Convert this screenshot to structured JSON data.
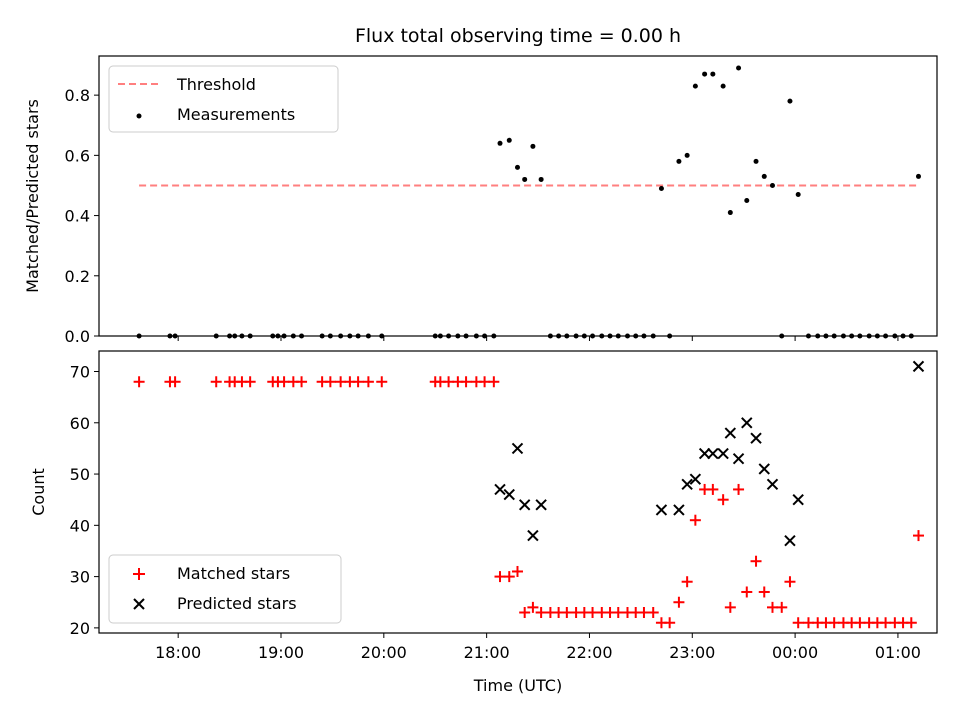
{
  "title": "Flux total observing time = 0.00 h",
  "chart_data": [
    {
      "type": "scatter",
      "ylabel": "Matched/Predicted stars",
      "xlim": [
        17.23,
        1.38
      ],
      "ylim": [
        0.0,
        0.93
      ],
      "xticks": [
        18,
        19,
        20,
        21,
        22,
        23,
        0,
        1
      ],
      "yticks": [
        0.0,
        0.2,
        0.4,
        0.6,
        0.8
      ],
      "ytick_labels": [
        "0.0",
        "0.2",
        "0.4",
        "0.6",
        "0.8"
      ],
      "legend": [
        "Threshold",
        "Measurements"
      ],
      "legend_position": "upper-left",
      "threshold": {
        "name": "Threshold",
        "y": 0.5,
        "x_range": [
          17.62,
          1.2
        ],
        "color": "#ff7f7f",
        "style": "dashed"
      },
      "series": [
        {
          "name": "Measurements",
          "color": "#000000",
          "points": [
            [
              17.62,
              0.0
            ],
            [
              17.92,
              0.0
            ],
            [
              17.97,
              0.0
            ],
            [
              18.37,
              0.0
            ],
            [
              18.5,
              0.0
            ],
            [
              18.55,
              0.0
            ],
            [
              18.62,
              0.0
            ],
            [
              18.7,
              0.0
            ],
            [
              18.92,
              0.0
            ],
            [
              18.97,
              0.0
            ],
            [
              19.03,
              0.0
            ],
            [
              19.12,
              0.0
            ],
            [
              19.2,
              0.0
            ],
            [
              19.4,
              0.0
            ],
            [
              19.48,
              0.0
            ],
            [
              19.58,
              0.0
            ],
            [
              19.67,
              0.0
            ],
            [
              19.75,
              0.0
            ],
            [
              19.85,
              0.0
            ],
            [
              19.98,
              0.0
            ],
            [
              20.5,
              0.0
            ],
            [
              20.55,
              0.0
            ],
            [
              20.63,
              0.0
            ],
            [
              20.72,
              0.0
            ],
            [
              20.8,
              0.0
            ],
            [
              20.9,
              0.0
            ],
            [
              20.98,
              0.0
            ],
            [
              21.07,
              0.0
            ],
            [
              21.13,
              0.64
            ],
            [
              21.22,
              0.65
            ],
            [
              21.3,
              0.56
            ],
            [
              21.37,
              0.52
            ],
            [
              21.45,
              0.63
            ],
            [
              21.53,
              0.52
            ],
            [
              21.62,
              0.0
            ],
            [
              21.7,
              0.0
            ],
            [
              21.78,
              0.0
            ],
            [
              21.87,
              0.0
            ],
            [
              21.95,
              0.0
            ],
            [
              22.03,
              0.0
            ],
            [
              22.12,
              0.0
            ],
            [
              22.2,
              0.0
            ],
            [
              22.28,
              0.0
            ],
            [
              22.37,
              0.0
            ],
            [
              22.45,
              0.0
            ],
            [
              22.53,
              0.0
            ],
            [
              22.62,
              0.0
            ],
            [
              22.7,
              0.49
            ],
            [
              22.78,
              0.0
            ],
            [
              22.87,
              0.58
            ],
            [
              22.95,
              0.6
            ],
            [
              23.03,
              0.83
            ],
            [
              23.12,
              0.87
            ],
            [
              23.2,
              0.87
            ],
            [
              23.3,
              0.83
            ],
            [
              23.37,
              0.41
            ],
            [
              23.45,
              0.89
            ],
            [
              23.53,
              0.45
            ],
            [
              23.62,
              0.58
            ],
            [
              23.7,
              0.53
            ],
            [
              23.78,
              0.5
            ],
            [
              23.87,
              0.0
            ],
            [
              23.95,
              0.78
            ],
            [
              24.03,
              0.47
            ],
            [
              24.13,
              0.0
            ],
            [
              24.22,
              0.0
            ],
            [
              24.3,
              0.0
            ],
            [
              24.38,
              0.0
            ],
            [
              24.47,
              0.0
            ],
            [
              24.55,
              0.0
            ],
            [
              24.63,
              0.0
            ],
            [
              24.72,
              0.0
            ],
            [
              24.8,
              0.0
            ],
            [
              24.88,
              0.0
            ],
            [
              24.97,
              0.0
            ],
            [
              25.05,
              0.0
            ],
            [
              25.13,
              0.0
            ],
            [
              25.2,
              0.53
            ]
          ]
        }
      ]
    },
    {
      "type": "scatter",
      "xlabel": "Time (UTC)",
      "ylabel": "Count",
      "xlim": [
        17.23,
        1.38
      ],
      "ylim": [
        19,
        74
      ],
      "xticks": [
        18,
        19,
        20,
        21,
        22,
        23,
        0,
        1
      ],
      "xtick_labels": [
        "18:00",
        "19:00",
        "20:00",
        "21:00",
        "22:00",
        "23:00",
        "00:00",
        "01:00"
      ],
      "yticks": [
        20,
        30,
        40,
        50,
        60,
        70
      ],
      "ytick_labels": [
        "20",
        "30",
        "40",
        "50",
        "60",
        "70"
      ],
      "legend": [
        "Matched stars",
        "Predicted stars"
      ],
      "legend_position": "lower-left",
      "series": [
        {
          "name": "Matched stars",
          "marker": "+",
          "color": "#ff0000",
          "points": [
            [
              17.62,
              68
            ],
            [
              17.92,
              68
            ],
            [
              17.97,
              68
            ],
            [
              18.37,
              68
            ],
            [
              18.5,
              68
            ],
            [
              18.55,
              68
            ],
            [
              18.62,
              68
            ],
            [
              18.7,
              68
            ],
            [
              18.92,
              68
            ],
            [
              18.97,
              68
            ],
            [
              19.03,
              68
            ],
            [
              19.12,
              68
            ],
            [
              19.2,
              68
            ],
            [
              19.4,
              68
            ],
            [
              19.48,
              68
            ],
            [
              19.58,
              68
            ],
            [
              19.67,
              68
            ],
            [
              19.75,
              68
            ],
            [
              19.85,
              68
            ],
            [
              19.98,
              68
            ],
            [
              20.5,
              68
            ],
            [
              20.55,
              68
            ],
            [
              20.63,
              68
            ],
            [
              20.72,
              68
            ],
            [
              20.8,
              68
            ],
            [
              20.9,
              68
            ],
            [
              20.98,
              68
            ],
            [
              21.07,
              68
            ],
            [
              21.13,
              30
            ],
            [
              21.22,
              30
            ],
            [
              21.3,
              31
            ],
            [
              21.37,
              23
            ],
            [
              21.45,
              24
            ],
            [
              21.53,
              23
            ],
            [
              21.62,
              23
            ],
            [
              21.7,
              23
            ],
            [
              21.78,
              23
            ],
            [
              21.87,
              23
            ],
            [
              21.95,
              23
            ],
            [
              22.03,
              23
            ],
            [
              22.12,
              23
            ],
            [
              22.2,
              23
            ],
            [
              22.28,
              23
            ],
            [
              22.37,
              23
            ],
            [
              22.45,
              23
            ],
            [
              22.53,
              23
            ],
            [
              22.62,
              23
            ],
            [
              22.7,
              21
            ],
            [
              22.78,
              21
            ],
            [
              22.87,
              25
            ],
            [
              22.95,
              29
            ],
            [
              23.03,
              41
            ],
            [
              23.12,
              47
            ],
            [
              23.2,
              47
            ],
            [
              23.3,
              45
            ],
            [
              23.37,
              24
            ],
            [
              23.45,
              47
            ],
            [
              23.53,
              27
            ],
            [
              23.62,
              33
            ],
            [
              23.7,
              27
            ],
            [
              23.78,
              24
            ],
            [
              23.87,
              24
            ],
            [
              23.95,
              29
            ],
            [
              24.03,
              21
            ],
            [
              24.13,
              21
            ],
            [
              24.22,
              21
            ],
            [
              24.3,
              21
            ],
            [
              24.38,
              21
            ],
            [
              24.47,
              21
            ],
            [
              24.55,
              21
            ],
            [
              24.63,
              21
            ],
            [
              24.72,
              21
            ],
            [
              24.8,
              21
            ],
            [
              24.88,
              21
            ],
            [
              24.97,
              21
            ],
            [
              25.05,
              21
            ],
            [
              25.13,
              21
            ],
            [
              25.2,
              38
            ]
          ]
        },
        {
          "name": "Predicted stars",
          "marker": "x",
          "color": "#000000",
          "points": [
            [
              21.13,
              47
            ],
            [
              21.22,
              46
            ],
            [
              21.3,
              55
            ],
            [
              21.37,
              44
            ],
            [
              21.45,
              38
            ],
            [
              21.53,
              44
            ],
            [
              22.7,
              43
            ],
            [
              22.87,
              43
            ],
            [
              22.95,
              48
            ],
            [
              23.03,
              49
            ],
            [
              23.12,
              54
            ],
            [
              23.2,
              54
            ],
            [
              23.3,
              54
            ],
            [
              23.37,
              58
            ],
            [
              23.45,
              53
            ],
            [
              23.53,
              60
            ],
            [
              23.62,
              57
            ],
            [
              23.7,
              51
            ],
            [
              23.78,
              48
            ],
            [
              23.95,
              37
            ],
            [
              24.03,
              45
            ],
            [
              25.2,
              71
            ]
          ]
        }
      ]
    }
  ]
}
